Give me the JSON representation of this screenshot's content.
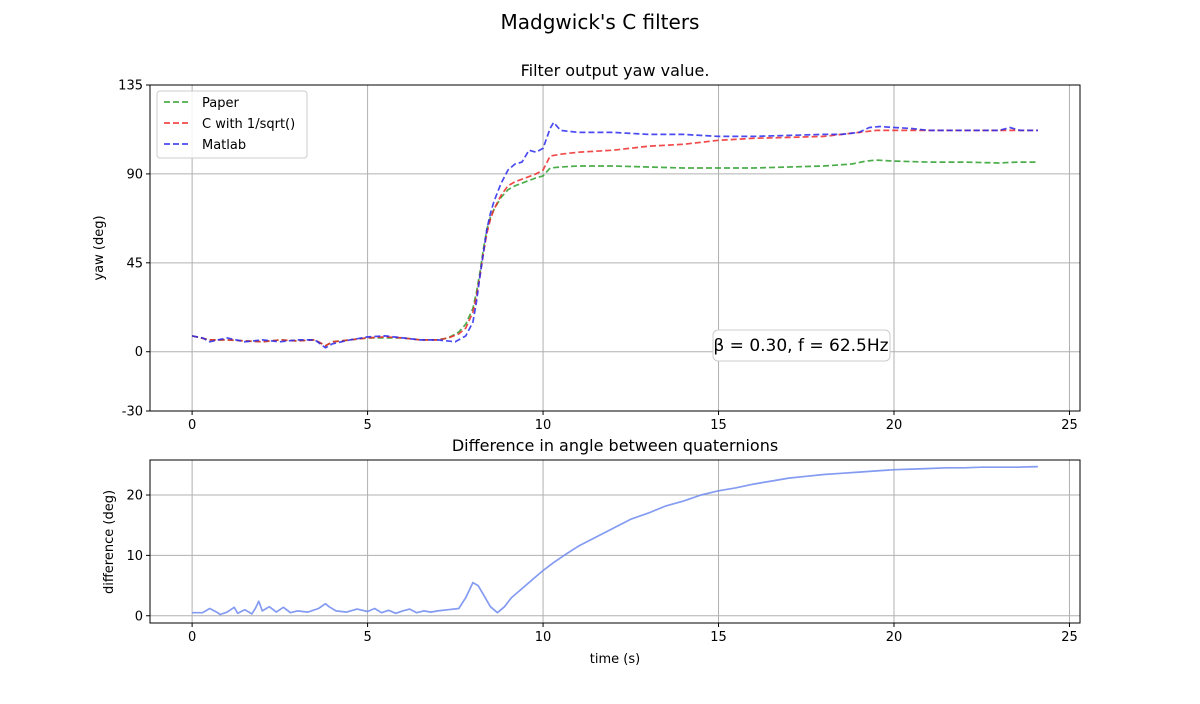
{
  "figure_title": "Madgwick's C filters",
  "colors": {
    "paper": "#2ca02c",
    "c_sqrt": "#ee2a2a",
    "matlab": "#2a2aee",
    "difference": "#6e8af0",
    "grid": "#b0b0b0"
  },
  "chart_data": [
    {
      "type": "line",
      "title": "Filter output yaw value.",
      "xlabel": "",
      "ylabel": "yaw (deg)",
      "xlim": [
        -1.2,
        25.3
      ],
      "ylim": [
        -30,
        135
      ],
      "xticks": [
        0,
        5,
        10,
        15,
        20,
        25
      ],
      "yticks": [
        -30,
        0,
        45,
        90,
        135
      ],
      "grid": true,
      "legend_position": "top-left",
      "annotation": "β = 0.30,  f = 62.5Hz",
      "series": [
        {
          "name": "Paper",
          "style": "dashed",
          "color": "#2ca02c",
          "x": [
            0,
            0.5,
            1,
            1.5,
            2,
            2.5,
            3,
            3.5,
            3.8,
            4,
            4.5,
            5,
            5.5,
            6,
            6.5,
            7,
            7.3,
            7.6,
            7.8,
            8,
            8.1,
            8.2,
            8.3,
            8.4,
            8.5,
            8.6,
            8.8,
            9,
            9.2,
            9.5,
            9.8,
            10,
            10.2,
            10.5,
            11,
            12,
            13,
            14,
            15,
            16,
            17,
            18,
            18.8,
            19.2,
            19.5,
            20,
            21,
            22,
            23,
            23.5,
            24.1
          ],
          "y": [
            8,
            6,
            6,
            5.5,
            5,
            6,
            5.5,
            6,
            3,
            5,
            6,
            7,
            7,
            7,
            6,
            6,
            7,
            10,
            14,
            22,
            30,
            40,
            52,
            62,
            68,
            72,
            78,
            82,
            84,
            86,
            88,
            89,
            93,
            93.5,
            94,
            94,
            93.5,
            93,
            93,
            93,
            93.5,
            94,
            95,
            96.5,
            97,
            96.5,
            96,
            96,
            95.5,
            96,
            96
          ]
        },
        {
          "name": "C with 1/sqrt()",
          "style": "dashed",
          "color": "#ee2a2a",
          "x": [
            0,
            0.5,
            1,
            1.5,
            2,
            2.5,
            3,
            3.5,
            3.8,
            4,
            4.5,
            5,
            5.5,
            6,
            6.5,
            7,
            7.3,
            7.6,
            7.8,
            8,
            8.1,
            8.2,
            8.3,
            8.4,
            8.5,
            8.6,
            8.8,
            9,
            9.2,
            9.5,
            9.8,
            10,
            10.2,
            10.5,
            11,
            12,
            13,
            14,
            15,
            16,
            17,
            18,
            18.5,
            19,
            19.5,
            20,
            21,
            22,
            23,
            23.5,
            24.1
          ],
          "y": [
            8,
            6,
            6,
            5.5,
            5,
            6,
            5.5,
            6,
            3,
            5,
            6,
            7,
            7.5,
            7,
            6,
            6,
            7,
            9,
            12,
            20,
            28,
            38,
            50,
            60,
            67,
            72,
            79,
            84,
            86,
            88,
            90,
            92,
            99,
            100,
            101,
            102,
            104,
            105,
            107,
            108,
            108.5,
            109,
            110,
            111,
            112,
            112,
            112,
            112,
            112,
            112,
            112
          ]
        },
        {
          "name": "Matlab",
          "style": "dashed",
          "color": "#2a2aee",
          "x": [
            0,
            0.3,
            0.5,
            1,
            1.5,
            2,
            2.5,
            3,
            3.5,
            3.8,
            4,
            4.5,
            5,
            5.5,
            6,
            6.5,
            7,
            7.5,
            7.8,
            8,
            8.1,
            8.2,
            8.3,
            8.4,
            8.5,
            8.6,
            8.8,
            9,
            9.2,
            9.4,
            9.6,
            9.8,
            10,
            10.2,
            10.3,
            10.5,
            11,
            12,
            13,
            14,
            15,
            16,
            17,
            18,
            18.5,
            19,
            19.3,
            19.6,
            20,
            20.5,
            21,
            22,
            23,
            23.3,
            23.6,
            24.1
          ],
          "y": [
            8,
            7,
            5,
            7,
            5,
            6,
            5,
            6,
            6,
            2,
            4,
            6,
            7.5,
            8,
            7,
            6,
            6,
            5,
            8,
            15,
            25,
            38,
            50,
            62,
            70,
            76,
            85,
            92,
            95,
            96,
            102,
            101,
            103,
            113,
            116,
            112,
            111,
            111,
            110,
            110,
            109,
            109,
            109.5,
            110,
            110,
            111,
            113.5,
            114,
            113.5,
            113,
            112,
            112,
            112,
            113.5,
            112,
            112
          ]
        }
      ]
    },
    {
      "type": "line",
      "title": "Difference in angle between quaternions",
      "xlabel": "time (s)",
      "ylabel": "difference (deg)",
      "xlim": [
        -1.2,
        25.3
      ],
      "ylim": [
        -1.2,
        25.8
      ],
      "xticks": [
        0,
        5,
        10,
        15,
        20,
        25
      ],
      "yticks": [
        0,
        10,
        20
      ],
      "grid": true,
      "series": [
        {
          "style": "solid",
          "color": "#6e8af0",
          "x": [
            0,
            0.3,
            0.5,
            0.7,
            0.8,
            1,
            1.2,
            1.3,
            1.5,
            1.7,
            1.8,
            1.9,
            2,
            2.2,
            2.4,
            2.6,
            2.8,
            3,
            3.3,
            3.6,
            3.8,
            3.9,
            4.1,
            4.4,
            4.7,
            5,
            5.2,
            5.4,
            5.6,
            5.8,
            6,
            6.2,
            6.4,
            6.6,
            6.8,
            7,
            7.3,
            7.6,
            7.8,
            8,
            8.15,
            8.3,
            8.5,
            8.7,
            8.9,
            9.1,
            9.4,
            9.7,
            10,
            10.3,
            10.6,
            11,
            11.5,
            12,
            12.5,
            13,
            13.5,
            14,
            14.5,
            15,
            15.5,
            16,
            16.5,
            17,
            17.5,
            18,
            18.5,
            19,
            19.5,
            20,
            20.5,
            21,
            21.5,
            22,
            22.5,
            23,
            23.5,
            24.1
          ],
          "y": [
            0.5,
            0.5,
            1.2,
            0.6,
            0.2,
            0.6,
            1.4,
            0.4,
            1.0,
            0.3,
            1.2,
            2.4,
            0.8,
            1.5,
            0.6,
            1.4,
            0.5,
            0.8,
            0.6,
            1.2,
            2.0,
            1.5,
            0.8,
            0.6,
            1.1,
            0.7,
            1.2,
            0.5,
            0.9,
            0.4,
            0.8,
            1.1,
            0.5,
            0.8,
            0.6,
            0.8,
            1.0,
            1.2,
            3.0,
            5.5,
            5.0,
            3.5,
            1.5,
            0.5,
            1.5,
            3.0,
            4.5,
            6.0,
            7.5,
            8.8,
            10.0,
            11.5,
            13.0,
            14.5,
            16.0,
            17.0,
            18.2,
            19.0,
            20.0,
            20.7,
            21.2,
            21.8,
            22.3,
            22.8,
            23.1,
            23.4,
            23.6,
            23.8,
            24.0,
            24.2,
            24.3,
            24.4,
            24.5,
            24.5,
            24.6,
            24.6,
            24.6,
            24.7
          ]
        }
      ]
    }
  ]
}
